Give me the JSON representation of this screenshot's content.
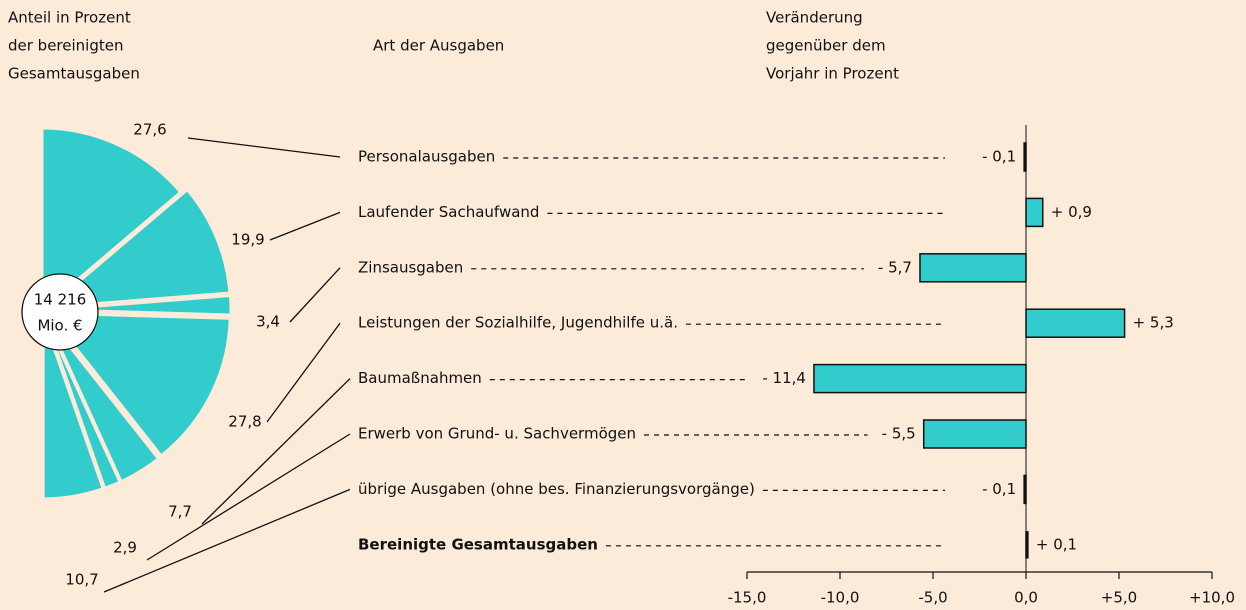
{
  "chart_data": [
    {
      "type": "pie",
      "title": [
        "Anteil in Prozent",
        "der bereinigten",
        "Gesamtausgaben"
      ],
      "center_label": [
        "14 216",
        "Mio. €"
      ],
      "values": [
        27.6,
        19.9,
        3.4,
        27.8,
        7.7,
        2.9,
        10.7
      ],
      "value_labels": [
        "27,6",
        "19,9",
        "3,4",
        "27,8",
        "7,7",
        "2,9",
        "10,7"
      ],
      "color": "#33cccc"
    },
    {
      "type": "hbar",
      "title": [
        "Veränderung",
        "gegenüber dem",
        "Vorjahr in Prozent"
      ],
      "category_title": "Art der Ausgaben",
      "categories": [
        "Personalausgaben",
        "Laufender Sachaufwand",
        "Zinsausgaben",
        "Leistungen der Sozialhilfe, Jugendhilfe u.ä.",
        "Baumaßnahmen",
        "Erwerb von Grund- u. Sachvermögen",
        "übrige Ausgaben (ohne bes. Finanzierungsvorgänge)",
        "Bereinigte Gesamtausgaben"
      ],
      "values": [
        -0.1,
        0.9,
        -5.7,
        5.3,
        -11.4,
        -5.5,
        -0.1,
        0.1
      ],
      "value_labels": [
        "- 0,1",
        "+ 0,9",
        "- 5,7",
        "+ 5,3",
        "- 11,4",
        "- 5,5",
        "- 0,1",
        "+ 0,1"
      ],
      "color": "#33cccc",
      "xlim": [
        -15,
        10
      ],
      "xticks": [
        {
          "value": -15,
          "label": "-15,0"
        },
        {
          "value": -10,
          "label": "-10,0"
        },
        {
          "value": -5,
          "label": "-5,0"
        },
        {
          "value": 0,
          "label": "0,0"
        },
        {
          "value": 5,
          "label": "+5,0"
        },
        {
          "value": 10,
          "label": "+10,0"
        }
      ]
    }
  ]
}
